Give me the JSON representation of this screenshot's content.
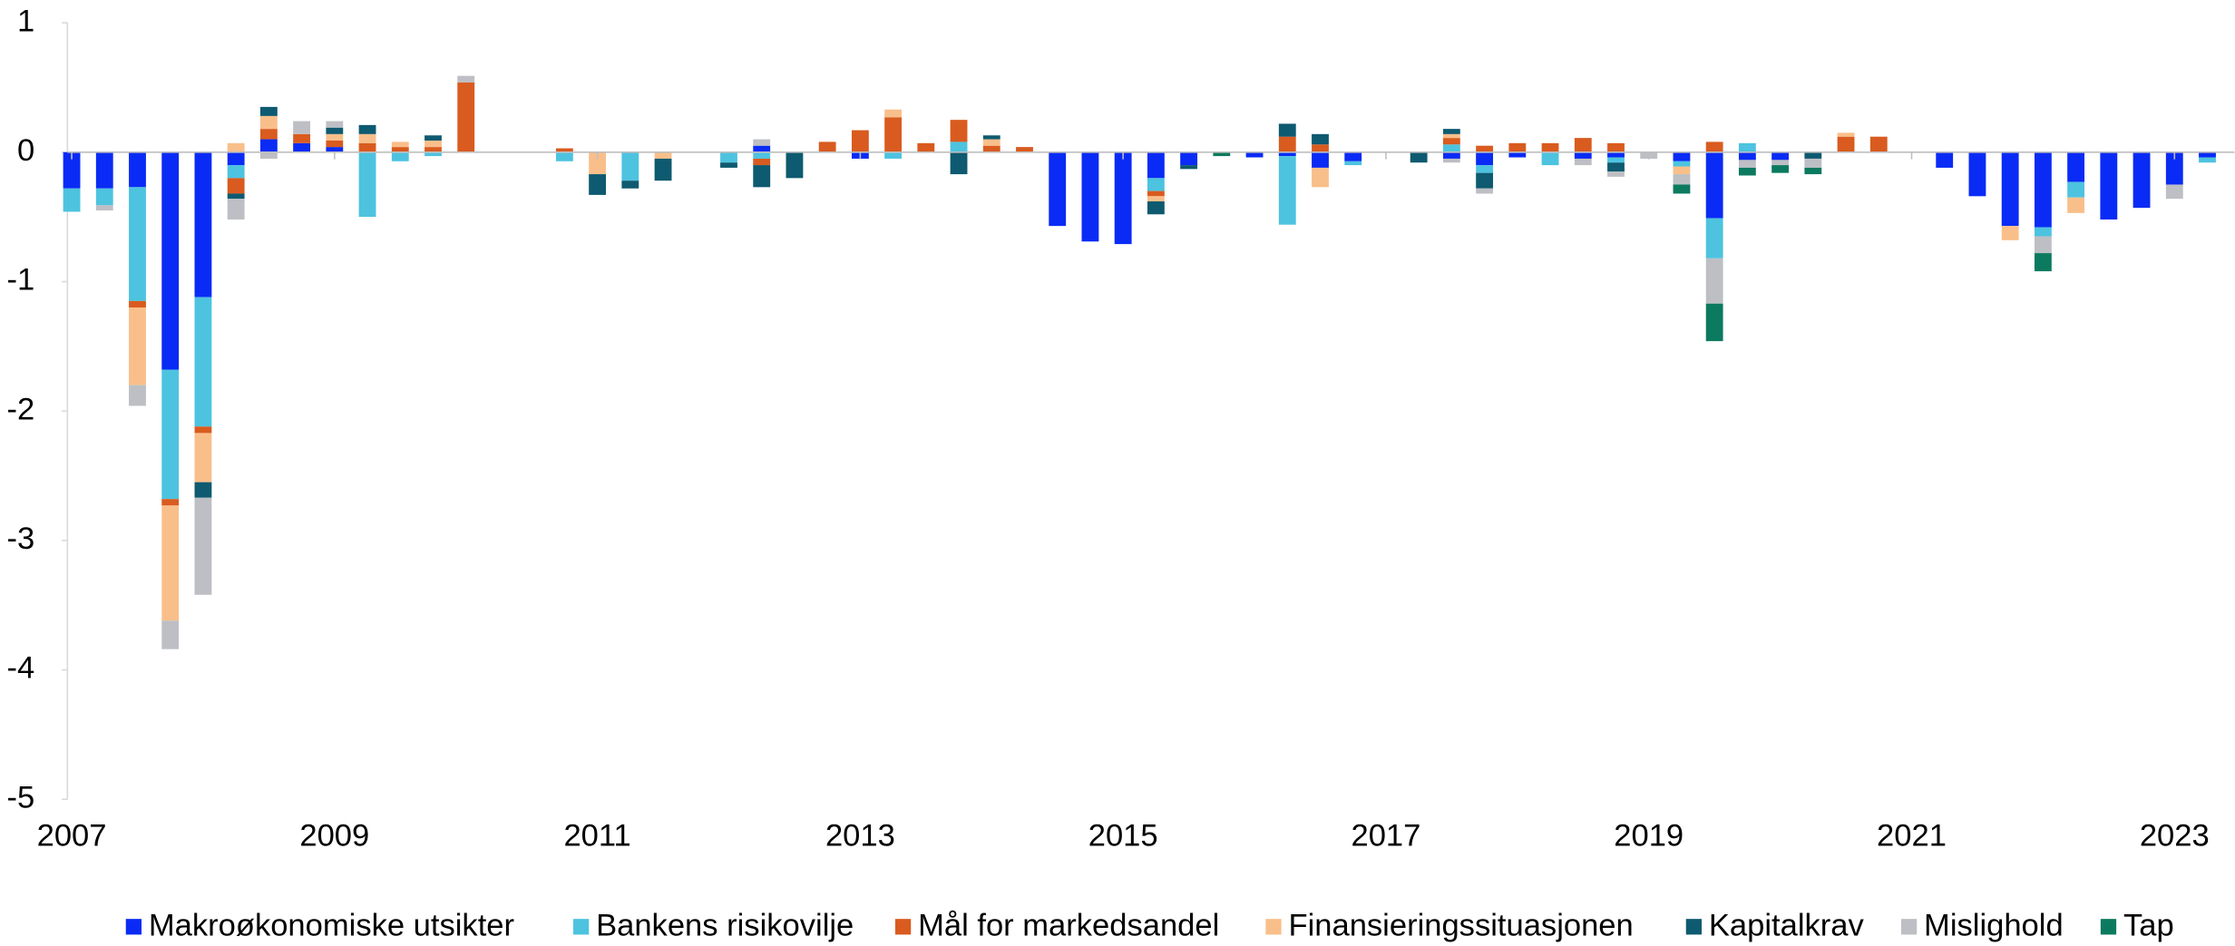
{
  "chart_data": {
    "type": "stacked-bar",
    "categories": [
      "2007",
      null,
      null,
      null,
      null,
      null,
      null,
      null,
      "2009",
      null,
      null,
      null,
      null,
      null,
      null,
      null,
      "2011",
      null,
      null,
      null,
      null,
      null,
      null,
      null,
      "2013",
      null,
      null,
      null,
      null,
      null,
      null,
      null,
      "2015",
      null,
      null,
      null,
      null,
      null,
      null,
      null,
      "2017",
      null,
      null,
      null,
      null,
      null,
      null,
      null,
      "2019",
      null,
      null,
      null,
      null,
      null,
      null,
      null,
      "2021",
      null,
      null,
      null,
      null,
      null,
      null,
      null,
      "2023",
      null
    ],
    "ylim": [
      -5,
      1
    ],
    "yticks": [
      1,
      0,
      -1,
      -2,
      -3,
      -4,
      -5
    ],
    "legend": "bottom",
    "series": [
      {
        "name": "Makroøkonomiske utsikter",
        "color": "#0a2bf5",
        "values": [
          -0.28,
          -0.28,
          -0.27,
          -1.68,
          -1.12,
          -0.1,
          0.1,
          0.07,
          0.04,
          0,
          0,
          0,
          0,
          0,
          0,
          0,
          0,
          0,
          0,
          0,
          0,
          0.05,
          0,
          0,
          -0.05,
          0,
          0,
          0,
          0,
          0,
          -0.57,
          -0.69,
          -0.71,
          -0.2,
          -0.1,
          0,
          -0.04,
          -0.03,
          -0.12,
          -0.07,
          0,
          0,
          -0.05,
          -0.1,
          -0.04,
          0,
          -0.05,
          -0.04,
          0,
          -0.07,
          -0.51,
          -0.06,
          -0.06,
          0,
          0,
          0,
          0,
          -0.12,
          -0.34,
          -0.57,
          -0.58,
          -0.23,
          -0.52,
          -0.43,
          -0.25,
          -0.04
        ]
      },
      {
        "name": "Bankens risikovilje",
        "color": "#4dc3e0",
        "values": [
          -0.18,
          -0.13,
          -0.88,
          -1.0,
          -1.0,
          -0.1,
          0,
          0,
          0,
          -0.5,
          -0.07,
          -0.03,
          0,
          0,
          0,
          -0.07,
          0,
          -0.22,
          0,
          0,
          -0.08,
          -0.05,
          0,
          0,
          0,
          -0.05,
          0,
          0.08,
          0,
          0,
          0,
          0,
          0,
          -0.1,
          0,
          0,
          0,
          -0.53,
          0,
          -0.03,
          0,
          0,
          0.06,
          -0.06,
          0,
          -0.1,
          0,
          -0.04,
          0,
          -0.04,
          -0.31,
          0.07,
          0,
          0,
          0,
          0,
          0,
          0,
          0,
          0,
          -0.07,
          -0.12,
          0,
          0,
          0,
          -0.04
        ]
      },
      {
        "name": "Mål for markedsandel",
        "color": "#d95b1f",
        "values": [
          0,
          0,
          -0.05,
          -0.05,
          -0.05,
          -0.12,
          0.08,
          0.07,
          0.05,
          0.07,
          0.04,
          0.04,
          0.54,
          0,
          0,
          0.03,
          0,
          0,
          0,
          0,
          0,
          -0.05,
          0,
          0.08,
          0.17,
          0.27,
          0.07,
          0.17,
          0.05,
          0.04,
          0,
          0,
          0,
          -0.04,
          0,
          0,
          0,
          0.12,
          0.06,
          0,
          0,
          0,
          0.05,
          0.05,
          0.07,
          0.07,
          0.11,
          0.07,
          0,
          0,
          0.08,
          0,
          0,
          0,
          0.12,
          0.12,
          0,
          0,
          0,
          0,
          0,
          0,
          0,
          0,
          0,
          0
        ]
      },
      {
        "name": "Finansieringssituasjonen",
        "color": "#f9bf8a",
        "values": [
          0,
          0,
          -0.6,
          -0.89,
          -0.38,
          0.07,
          0.1,
          0,
          0.05,
          0.07,
          0.04,
          0.05,
          0,
          0,
          0,
          0,
          -0.17,
          0,
          -0.05,
          0,
          0,
          0,
          0,
          0,
          0,
          0.06,
          0,
          0,
          0.05,
          0,
          0,
          0,
          0,
          -0.04,
          0,
          0,
          0,
          0,
          -0.15,
          0,
          0,
          0,
          0.03,
          0,
          0,
          0,
          0,
          0,
          0,
          -0.06,
          0,
          0,
          0,
          0,
          0.03,
          0,
          0,
          0,
          0,
          -0.11,
          0,
          -0.12,
          0,
          0,
          0,
          0
        ]
      },
      {
        "name": "Kapitalkrav",
        "color": "#0e5a70",
        "values": [
          0,
          0,
          0,
          0,
          -0.12,
          -0.04,
          0.07,
          0,
          0.05,
          0.07,
          0,
          0.04,
          0,
          0,
          0,
          0,
          -0.16,
          -0.06,
          -0.17,
          0,
          -0.04,
          -0.17,
          -0.2,
          0,
          0,
          0,
          0,
          -0.17,
          0.03,
          0,
          0,
          0,
          0,
          -0.1,
          -0.03,
          0,
          0,
          0.1,
          0.08,
          0,
          0,
          -0.08,
          0.04,
          -0.12,
          0,
          0,
          0,
          -0.07,
          0,
          0,
          0,
          0,
          0,
          -0.05,
          0,
          0,
          0,
          0,
          0,
          0,
          0,
          0,
          0,
          0,
          0,
          0
        ]
      },
      {
        "name": "Mislighold",
        "color": "#bdbfc4",
        "values": [
          0,
          -0.04,
          -0.16,
          -0.22,
          -0.75,
          -0.16,
          -0.05,
          0.1,
          0.05,
          0,
          0,
          0,
          0.05,
          0,
          0,
          0,
          0,
          0,
          0,
          0,
          0,
          0.05,
          0,
          0,
          0,
          0,
          0,
          0,
          0,
          0,
          0,
          0,
          0,
          0,
          0,
          0,
          0,
          0,
          0,
          0,
          0,
          0,
          -0.03,
          -0.04,
          0,
          0,
          -0.05,
          -0.04,
          -0.05,
          -0.08,
          -0.35,
          -0.06,
          -0.04,
          -0.07,
          0,
          0,
          0,
          0,
          0,
          0,
          -0.13,
          0,
          0,
          0,
          -0.11,
          0
        ]
      },
      {
        "name": "Tap",
        "color": "#0c7a5e",
        "values": [
          0,
          0,
          0,
          0,
          0,
          0,
          0,
          0,
          0,
          0,
          0,
          0,
          0,
          0,
          0,
          0,
          0,
          0,
          0,
          0,
          0,
          0,
          0,
          0,
          0,
          0,
          0,
          0,
          0,
          0,
          0,
          0,
          0,
          0,
          0,
          -0.03,
          0,
          0,
          0,
          0,
          0,
          0,
          0,
          0,
          0,
          0,
          0,
          0,
          0,
          -0.07,
          -0.29,
          -0.06,
          -0.06,
          -0.05,
          0,
          0,
          0,
          0,
          0,
          0,
          -0.14,
          0,
          0,
          0,
          0,
          0
        ]
      }
    ]
  }
}
